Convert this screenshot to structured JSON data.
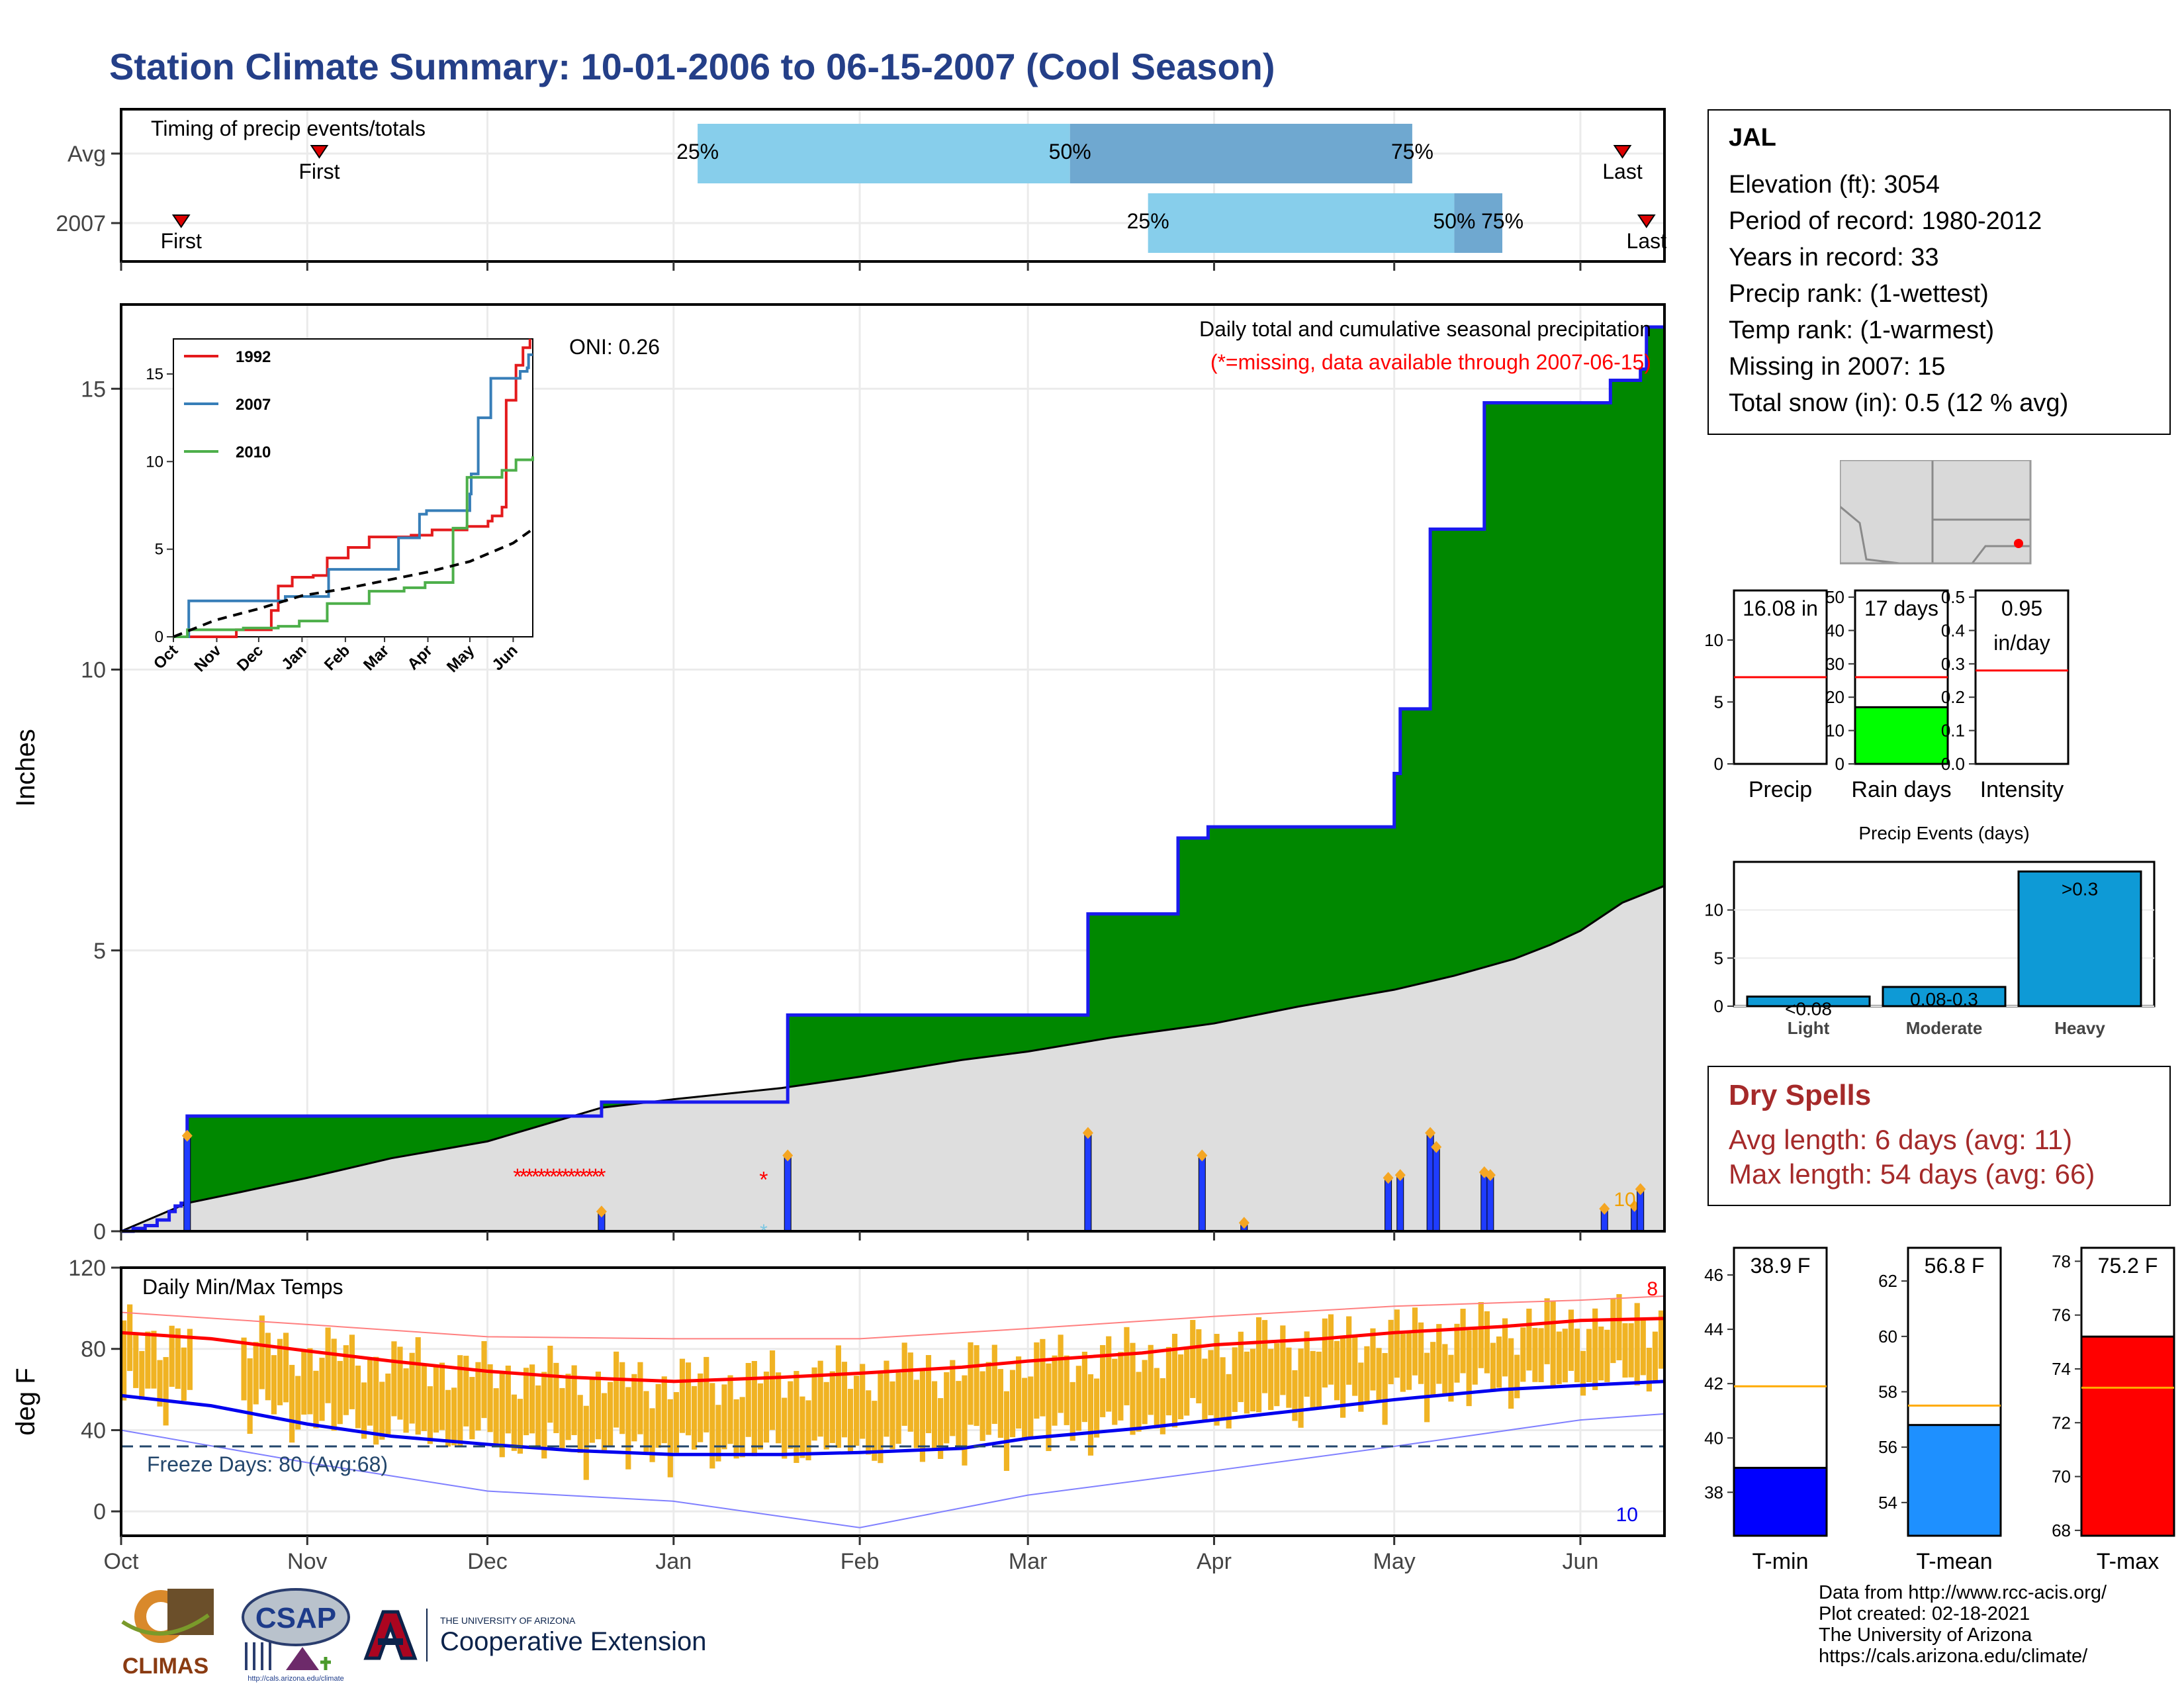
{
  "page": {
    "title": "Station Climate Summary: 10-01-2006 to 06-15-2007 (Cool Season)"
  },
  "timing": {
    "title": "Timing of precip events/totals",
    "rows": [
      {
        "label": "Avg",
        "first_label": "First",
        "last_label": "Last",
        "p25": "25%",
        "p50": "50%",
        "p75": "75%"
      },
      {
        "label": "2007",
        "first_label": "First",
        "last_label": "Last",
        "p25": "25%",
        "p50": "50%",
        "p75": "75%"
      }
    ]
  },
  "station": {
    "name": "JAL",
    "elevation": "Elevation (ft): 3054",
    "period": "Period of record: 1980-2012",
    "years": "Years in record: 33",
    "precip_rank": "Precip rank:  (1-wettest)",
    "temp_rank": "Temp rank:  (1-warmest)",
    "missing": "Missing in 2007: 15",
    "snow": "Total snow (in): 0.5 (12 % avg)"
  },
  "dry_spells": {
    "title": "Dry Spells",
    "avg": "Avg length: 6 days (avg: 11)",
    "max": "Max length: 54 days (avg: 66)"
  },
  "credits": {
    "line1": "Data from http://www.rcc-acis.org/",
    "line2": "Plot created: 02-18-2021",
    "line3": "The University of Arizona",
    "line4": "https://cals.arizona.edu/climate/"
  },
  "logos": {
    "climas": "CLIMAS",
    "csap": "CSAP",
    "csap_url": "http://cals.arizona.edu/climate",
    "ua_small": "THE UNIVERSITY OF ARIZONA",
    "ua_big": "Cooperative Extension"
  },
  "colors": {
    "title": "#243f88",
    "cum_fill": "#008800",
    "avg_fill": "#dedede",
    "bar_blue": "#1f3cff",
    "marker_orange": "#f5a623",
    "tmax": "#ff0000",
    "tmin": "#0000ee",
    "range": "#f0b323",
    "lightblue": "#87ceeb",
    "midblue": "#6fa8d0",
    "dry": "#a52a2a"
  },
  "chart_data": [
    {
      "id": "precip_main",
      "type": "area",
      "ylabel": "Inches",
      "title": "Daily total and cumulative seasonal precipitation",
      "subtitle": "(*=missing, data available through 2007-06-15)",
      "annotation_oni": "ONI: 0.26",
      "annotation_count": "10",
      "ylim": [
        0,
        16.5
      ],
      "yticks": [
        0,
        5,
        10,
        15
      ],
      "x_ticks": [
        "Oct",
        "Nov",
        "Dec",
        "Jan",
        "Feb",
        "Mar",
        "Apr",
        "May",
        "Jun"
      ],
      "x_tick_days": [
        0,
        31,
        61,
        92,
        123,
        151,
        182,
        212,
        243
      ],
      "x_range_days": [
        0,
        257
      ],
      "series": [
        {
          "name": "2007 cumulative",
          "steps": [
            [
              0,
              0.0
            ],
            [
              2,
              0.05
            ],
            [
              4,
              0.1
            ],
            [
              6,
              0.2
            ],
            [
              8,
              0.35
            ],
            [
              9,
              0.45
            ],
            [
              10,
              0.5
            ],
            [
              11,
              2.05
            ],
            [
              79,
              2.05
            ],
            [
              80,
              2.3
            ],
            [
              110,
              2.3
            ],
            [
              111,
              3.85
            ],
            [
              160,
              3.85
            ],
            [
              161,
              5.65
            ],
            [
              175,
              5.65
            ],
            [
              176,
              7.0
            ],
            [
              180,
              7.0
            ],
            [
              181,
              7.2
            ],
            [
              211,
              7.2
            ],
            [
              212,
              8.15
            ],
            [
              213,
              9.3
            ],
            [
              217,
              9.3
            ],
            [
              218,
              12.5
            ],
            [
              226,
              12.5
            ],
            [
              227,
              14.75
            ],
            [
              247,
              14.75
            ],
            [
              248,
              15.15
            ],
            [
              252,
              15.15
            ],
            [
              253,
              15.35
            ],
            [
              254,
              16.1
            ],
            [
              257,
              16.1
            ]
          ]
        },
        {
          "name": "Avg cumulative",
          "points": [
            [
              0,
              0.0
            ],
            [
              11,
              0.5
            ],
            [
              20,
              0.7
            ],
            [
              31,
              0.95
            ],
            [
              45,
              1.3
            ],
            [
              61,
              1.6
            ],
            [
              80,
              2.2
            ],
            [
              92,
              2.35
            ],
            [
              110,
              2.55
            ],
            [
              123,
              2.75
            ],
            [
              140,
              3.05
            ],
            [
              151,
              3.2
            ],
            [
              165,
              3.45
            ],
            [
              182,
              3.7
            ],
            [
              196,
              4.0
            ],
            [
              212,
              4.3
            ],
            [
              222,
              4.55
            ],
            [
              232,
              4.85
            ],
            [
              238,
              5.1
            ],
            [
              243,
              5.35
            ],
            [
              250,
              5.85
            ],
            [
              257,
              6.15
            ]
          ]
        }
      ],
      "daily_bars": [
        [
          11,
          1.7
        ],
        [
          80,
          0.35
        ],
        [
          111,
          1.35
        ],
        [
          161,
          1.75
        ],
        [
          180,
          1.35
        ],
        [
          187,
          0.15
        ],
        [
          211,
          0.95
        ],
        [
          213,
          1.0
        ],
        [
          218,
          1.75
        ],
        [
          219,
          1.5
        ],
        [
          227,
          1.05
        ],
        [
          228,
          1.0
        ],
        [
          247,
          0.4
        ],
        [
          252,
          0.45
        ],
        [
          253,
          0.75
        ]
      ],
      "missing_days": [
        66,
        67,
        68,
        69,
        70,
        71,
        72,
        73,
        74,
        75,
        76,
        77,
        78,
        79,
        80,
        107
      ],
      "missing_label": "*"
    },
    {
      "id": "precip_inset",
      "type": "line",
      "ylim": [
        0,
        17
      ],
      "yticks": [
        0,
        5,
        10,
        15
      ],
      "x_ticks": [
        "Oct",
        "Nov",
        "Dec",
        "Jan",
        "Feb",
        "Mar",
        "Apr",
        "May",
        "Jun"
      ],
      "series": [
        {
          "name": "1992",
          "steps": [
            [
              0,
              0
            ],
            [
              20,
              0
            ],
            [
              45,
              0.4
            ],
            [
              70,
              1.5
            ],
            [
              75,
              2.9
            ],
            [
              85,
              3.4
            ],
            [
              100,
              3.5
            ],
            [
              110,
              4.5
            ],
            [
              125,
              5.1
            ],
            [
              140,
              5.7
            ],
            [
              170,
              5.8
            ],
            [
              185,
              6.1
            ],
            [
              210,
              6.3
            ],
            [
              225,
              6.6
            ],
            [
              228,
              6.9
            ],
            [
              235,
              7.4
            ],
            [
              238,
              13.5
            ],
            [
              245,
              15.5
            ],
            [
              250,
              16.5
            ],
            [
              255,
              17.0
            ]
          ]
        },
        {
          "name": "2007",
          "steps": [
            [
              0,
              0
            ],
            [
              11,
              2.05
            ],
            [
              80,
              2.3
            ],
            [
              111,
              3.85
            ],
            [
              161,
              5.65
            ],
            [
              176,
              7.0
            ],
            [
              181,
              7.2
            ],
            [
              212,
              8.15
            ],
            [
              213,
              9.3
            ],
            [
              218,
              12.5
            ],
            [
              227,
              14.75
            ],
            [
              248,
              15.15
            ],
            [
              253,
              15.35
            ],
            [
              254,
              16.1
            ],
            [
              257,
              16.1
            ]
          ]
        },
        {
          "name": "2010",
          "steps": [
            [
              0,
              0
            ],
            [
              10,
              0.4
            ],
            [
              50,
              0.5
            ],
            [
              75,
              0.6
            ],
            [
              90,
              0.9
            ],
            [
              110,
              1.9
            ],
            [
              140,
              2.6
            ],
            [
              165,
              2.8
            ],
            [
              180,
              3.1
            ],
            [
              200,
              6.2
            ],
            [
              210,
              9.1
            ],
            [
              235,
              9.5
            ],
            [
              245,
              10.1
            ],
            [
              257,
              10.3
            ]
          ]
        },
        {
          "name": "Average",
          "points": [
            [
              0,
              0
            ],
            [
              30,
              0.95
            ],
            [
              61,
              1.6
            ],
            [
              92,
              2.35
            ],
            [
              123,
              2.75
            ],
            [
              151,
              3.2
            ],
            [
              182,
              3.7
            ],
            [
              212,
              4.3
            ],
            [
              243,
              5.35
            ],
            [
              257,
              6.15
            ]
          ]
        }
      ]
    },
    {
      "id": "temp_main",
      "type": "line",
      "title": "Daily Min/Max Temps",
      "ylabel": "deg F",
      "ylim": [
        -12,
        120
      ],
      "yticks": [
        0,
        40,
        80,
        120
      ],
      "freeze_line": 32,
      "freeze_label": "Freeze Days: 80 (Avg:68)",
      "annotation_max": "8",
      "annotation_min": "10",
      "x_ticks": [
        "Oct",
        "Nov",
        "Dec",
        "Jan",
        "Feb",
        "Mar",
        "Apr",
        "May",
        "Jun"
      ],
      "series": [
        {
          "name": "Avg max",
          "points": [
            [
              0,
              88
            ],
            [
              15,
              85
            ],
            [
              31,
              79
            ],
            [
              45,
              74
            ],
            [
              61,
              69
            ],
            [
              75,
              66
            ],
            [
              92,
              64
            ],
            [
              110,
              66
            ],
            [
              123,
              68
            ],
            [
              140,
              71
            ],
            [
              151,
              74
            ],
            [
              170,
              78
            ],
            [
              182,
              82
            ],
            [
              200,
              85
            ],
            [
              212,
              88
            ],
            [
              230,
              91
            ],
            [
              243,
              94
            ],
            [
              257,
              95
            ]
          ]
        },
        {
          "name": "Avg min",
          "points": [
            [
              0,
              57
            ],
            [
              15,
              52
            ],
            [
              31,
              43
            ],
            [
              45,
              37
            ],
            [
              61,
              33
            ],
            [
              75,
              30
            ],
            [
              92,
              28
            ],
            [
              110,
              28
            ],
            [
              123,
              29
            ],
            [
              140,
              31
            ],
            [
              151,
              36
            ],
            [
              170,
              41
            ],
            [
              182,
              45
            ],
            [
              200,
              51
            ],
            [
              212,
              55
            ],
            [
              230,
              60
            ],
            [
              243,
              62
            ],
            [
              257,
              64
            ]
          ]
        },
        {
          "name": "Record max",
          "points": [
            [
              0,
              98
            ],
            [
              31,
              92
            ],
            [
              61,
              86
            ],
            [
              92,
              85
            ],
            [
              123,
              85
            ],
            [
              151,
              90
            ],
            [
              182,
              96
            ],
            [
              212,
              101
            ],
            [
              243,
              104
            ],
            [
              257,
              106
            ]
          ]
        },
        {
          "name": "Record min",
          "points": [
            [
              0,
              40
            ],
            [
              31,
              24
            ],
            [
              61,
              10
            ],
            [
              92,
              5
            ],
            [
              123,
              -8
            ],
            [
              151,
              8
            ],
            [
              182,
              20
            ],
            [
              212,
              32
            ],
            [
              243,
              45
            ],
            [
              257,
              48
            ]
          ]
        }
      ]
    },
    {
      "id": "precip_total",
      "type": "bar",
      "xlabel": "Precip",
      "value_label": "16.08 in",
      "value": 16.08,
      "avg": 7.0,
      "ylim": [
        0,
        14
      ],
      "yticks": [
        0,
        5,
        10
      ]
    },
    {
      "id": "rain_days",
      "type": "bar",
      "xlabel": "Rain days",
      "value_label": "17 days",
      "value": 17,
      "avg": 26,
      "ylim": [
        0,
        52
      ],
      "yticks": [
        0,
        10,
        20,
        30,
        40,
        50
      ]
    },
    {
      "id": "intensity",
      "type": "bar",
      "xlabel": "Intensity",
      "value_label_1": "0.95",
      "value_label_2": "in/day",
      "value": 0.95,
      "avg": 0.28,
      "ylim": [
        0,
        0.52
      ],
      "yticks": [
        0.0,
        0.1,
        0.2,
        0.3,
        0.4,
        0.5
      ]
    },
    {
      "id": "precip_events",
      "type": "bar",
      "title": "Precip Events (days)",
      "categories": [
        "Light",
        "Moderate",
        "Heavy"
      ],
      "values": [
        1,
        2,
        14
      ],
      "value_labels": [
        "<0.08",
        "0.08-0.3",
        ">0.3"
      ],
      "ylim": [
        0,
        15
      ],
      "yticks": [
        0,
        5,
        10
      ]
    },
    {
      "id": "tmin",
      "type": "bar",
      "xlabel": "T-min",
      "value_label": "38.9 F",
      "value": 38.9,
      "avg": 41.9,
      "ylim": [
        36.4,
        47
      ],
      "yticks": [
        38,
        40,
        42,
        44,
        46
      ]
    },
    {
      "id": "tmean",
      "type": "bar",
      "xlabel": "T-mean",
      "value_label": "56.8 F",
      "value": 56.8,
      "avg": 57.5,
      "ylim": [
        52.8,
        63.2
      ],
      "yticks": [
        54,
        56,
        58,
        60,
        62
      ]
    },
    {
      "id": "tmax",
      "type": "bar",
      "xlabel": "T-max",
      "value_label": "75.2 F",
      "value": 75.2,
      "avg": 73.3,
      "ylim": [
        67.8,
        78.5
      ],
      "yticks": [
        68,
        70,
        72,
        74,
        76,
        78
      ]
    }
  ]
}
